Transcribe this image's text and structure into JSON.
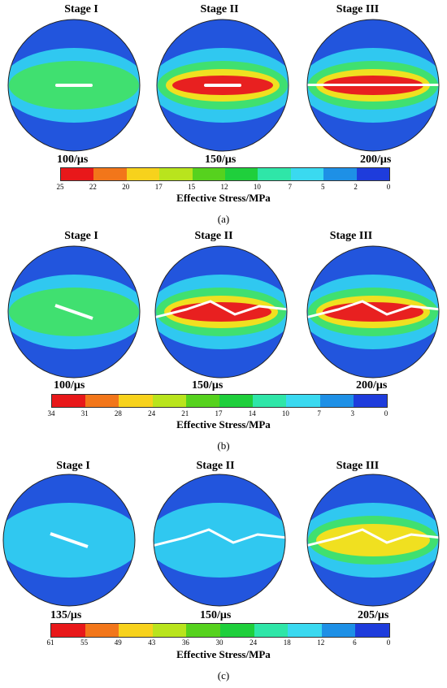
{
  "panels": [
    {
      "label": "(a)",
      "stages": [
        "Stage I",
        "Stage II",
        "Stage III"
      ],
      "times": [
        "100/μs",
        "150/μs",
        "200/μs"
      ],
      "colorbar": {
        "title": "Effective Stress/MPa",
        "ticks": [
          "25",
          "22",
          "20",
          "17",
          "15",
          "12",
          "10",
          "7",
          "5",
          "2",
          "0"
        ]
      }
    },
    {
      "label": "(b)",
      "stages": [
        "Stage I",
        "Stage II",
        "Stage III"
      ],
      "times": [
        "100/μs",
        "150/μs",
        "200/μs"
      ],
      "colorbar": {
        "title": "Effective Stress/MPa",
        "ticks": [
          "34",
          "31",
          "28",
          "24",
          "21",
          "17",
          "14",
          "10",
          "7",
          "3",
          "0"
        ]
      }
    },
    {
      "label": "(c)",
      "stages": [
        "Stage I",
        "Stage II",
        "Stage III"
      ],
      "times": [
        "135/μs",
        "150/μs",
        "205/μs"
      ],
      "colorbar": {
        "title": "Effective Stress/MPa",
        "ticks": [
          "61",
          "55",
          "49",
          "43",
          "36",
          "30",
          "24",
          "18",
          "12",
          "6",
          "0"
        ]
      }
    }
  ],
  "colors": {
    "scale": [
      "#e8181a",
      "#f2761a",
      "#f7d21c",
      "#b9e41d",
      "#56d21e",
      "#1fcf3c",
      "#2fe6a8",
      "#3ad9f0",
      "#1e90e6",
      "#1e3cdc"
    ],
    "base": "#2255dd",
    "mid": "#30c8f0",
    "green": "#40e070",
    "yellow": "#f0e020",
    "red": "#e82020",
    "crack": "#ffffff"
  }
}
